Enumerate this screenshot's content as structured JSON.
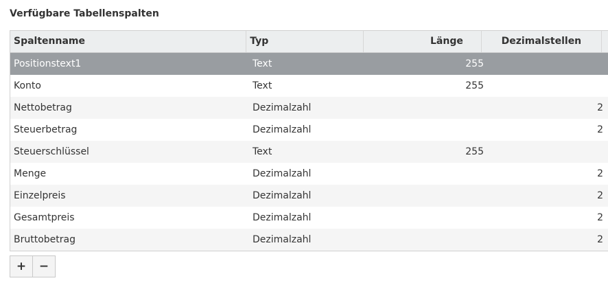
{
  "section_title": "Verfügbare Tabellenspalten",
  "columns": {
    "name": "Spaltenname",
    "type": "Typ",
    "length": "Länge",
    "decimals": "Dezimalstellen"
  },
  "rows": [
    {
      "name": "Positionstext1",
      "type": "Text",
      "length": "255",
      "decimals": "",
      "selected": true
    },
    {
      "name": "Konto",
      "type": "Text",
      "length": "255",
      "decimals": ""
    },
    {
      "name": "Nettobetrag",
      "type": "Dezimalzahl",
      "length": "",
      "decimals": "2"
    },
    {
      "name": "Steuerbetrag",
      "type": "Dezimalzahl",
      "length": "",
      "decimals": "2"
    },
    {
      "name": "Steuerschlüssel",
      "type": "Text",
      "length": "255",
      "decimals": ""
    },
    {
      "name": "Menge",
      "type": "Dezimalzahl",
      "length": "",
      "decimals": "2"
    },
    {
      "name": "Einzelpreis",
      "type": "Dezimalzahl",
      "length": "",
      "decimals": "2"
    },
    {
      "name": "Gesamtpreis",
      "type": "Dezimalzahl",
      "length": "",
      "decimals": "2"
    },
    {
      "name": "Bruttobetrag",
      "type": "Dezimalzahl",
      "length": "",
      "decimals": "2"
    }
  ],
  "toolbar": {
    "add_label": "+",
    "remove_label": "−"
  }
}
